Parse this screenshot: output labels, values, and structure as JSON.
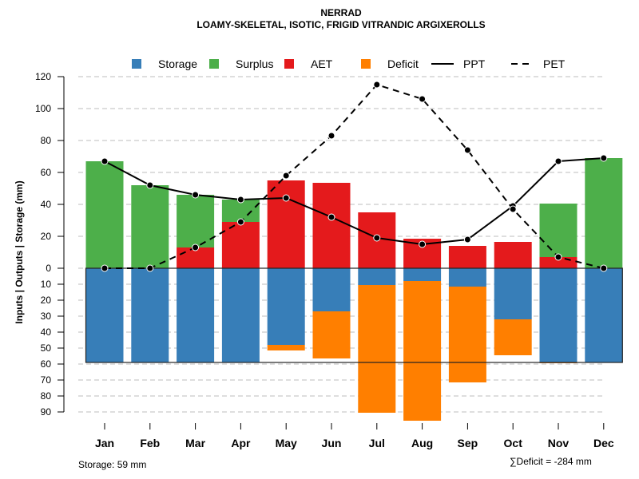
{
  "chart_data": {
    "type": "bar",
    "title": "NERRAD",
    "subtitle": "LOAMY-SKELETAL, ISOTIC, FRIGID VITRANDIC ARGIXEROLLS",
    "ylabel": "Inputs | Outputs | Storage    (mm)",
    "xlabel": "",
    "categories": [
      "Jan",
      "Feb",
      "Mar",
      "Apr",
      "May",
      "Jun",
      "Jul",
      "Aug",
      "Sep",
      "Oct",
      "Nov",
      "Dec"
    ],
    "upper_ylim": [
      0,
      120
    ],
    "upper_ticks": [
      0,
      20,
      40,
      60,
      80,
      100,
      120
    ],
    "lower_ylim": [
      0,
      90
    ],
    "lower_ticks": [
      10,
      20,
      30,
      40,
      50,
      60,
      70,
      80,
      90
    ],
    "grid": true,
    "legend_position": "top",
    "legend": [
      {
        "label": "Storage",
        "type": "box",
        "color": "#377EB8"
      },
      {
        "label": "Surplus",
        "type": "box",
        "color": "#4DAF4A"
      },
      {
        "label": "AET",
        "type": "box",
        "color": "#E41A1C"
      },
      {
        "label": "Deficit",
        "type": "box",
        "color": "#FF7F00"
      },
      {
        "label": "PPT",
        "type": "line-solid",
        "color": "#000000"
      },
      {
        "label": "PET",
        "type": "line-dashed",
        "color": "#000000"
      }
    ],
    "series": [
      {
        "name": "AET",
        "color": "#E41A1C",
        "values": [
          0,
          0,
          13,
          29,
          55,
          53.5,
          35,
          18.5,
          14,
          16.5,
          7,
          0
        ]
      },
      {
        "name": "Surplus",
        "color": "#4DAF4A",
        "values": [
          67,
          52,
          33,
          14,
          0,
          0,
          0,
          0,
          0,
          0,
          33.5,
          69
        ]
      },
      {
        "name": "Storage",
        "color": "#377EB8",
        "values": [
          59,
          59,
          59,
          59,
          48,
          27,
          10.5,
          8,
          11.5,
          32,
          59,
          59
        ]
      },
      {
        "name": "Deficit",
        "color": "#FF7F00",
        "values": [
          0,
          0,
          0,
          0,
          3.5,
          29.5,
          80,
          87.5,
          60,
          22.5,
          0.5,
          0
        ]
      },
      {
        "name": "PPT",
        "color": "#000000",
        "values": [
          67,
          52,
          46,
          43,
          44,
          32,
          19,
          15,
          18,
          39,
          67,
          69
        ]
      },
      {
        "name": "PET",
        "color": "#000000",
        "values": [
          0,
          0,
          13,
          29,
          58,
          83,
          115,
          106,
          74,
          37,
          7,
          0
        ]
      }
    ],
    "storage_capacity": 59,
    "annotations": {
      "storage_note": "Storage: 59 mm",
      "deficit_note": "∑Deficit = -284 mm"
    }
  }
}
